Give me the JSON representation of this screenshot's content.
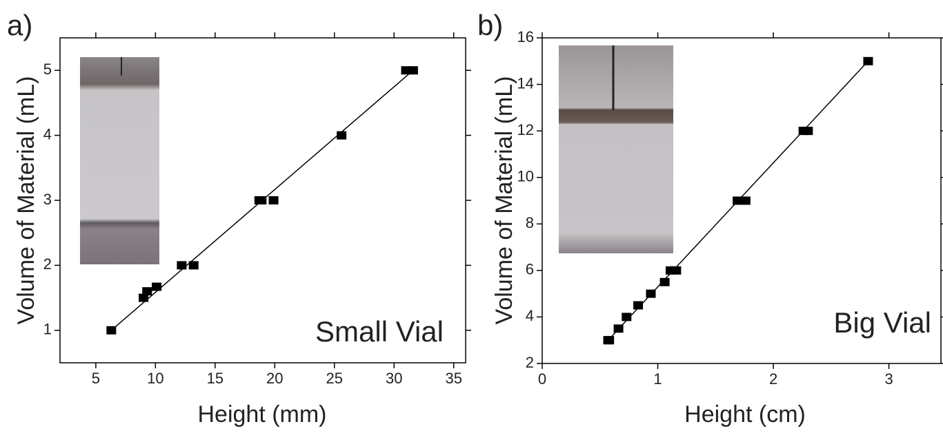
{
  "chart_data": [
    {
      "type": "scatter",
      "panel_label": "a)",
      "annotation": "Small Vial",
      "x_label": "Height (mm)",
      "y_label": "Volume of Material (mL)",
      "x": [
        6.3,
        9.0,
        9.3,
        10.1,
        12.2,
        13.2,
        18.7,
        18.9,
        19.9,
        25.6,
        31.0,
        31.6
      ],
      "values": [
        1,
        1.5,
        1.6,
        1.67,
        2,
        2,
        3,
        3,
        3,
        4,
        5,
        5
      ],
      "color": "#000000",
      "xlim": [
        2,
        36
      ],
      "xticks": [
        5,
        10,
        15,
        20,
        25,
        30,
        35
      ],
      "ylim": [
        0.5,
        5.5
      ],
      "yticks": [
        1,
        2,
        3,
        4,
        5
      ]
    },
    {
      "type": "scatter",
      "panel_label": "b)",
      "annotation": "Big Vial",
      "x_label": "Height (cm)",
      "y_label": "Volume of Material (mL)",
      "x": [
        0.57,
        0.58,
        0.66,
        0.73,
        0.83,
        0.94,
        1.06,
        1.11,
        1.16,
        1.69,
        1.76,
        2.26,
        2.3,
        2.82
      ],
      "values": [
        3,
        3,
        3.5,
        4,
        4.5,
        5,
        5.5,
        6,
        6,
        9,
        9,
        12,
        12,
        15
      ],
      "color": "#000000",
      "xlim": [
        0,
        3.45
      ],
      "xticks": [
        0,
        1,
        2,
        3
      ],
      "ylim": [
        2,
        16
      ],
      "yticks": [
        2,
        4,
        6,
        8,
        10,
        12,
        14,
        16
      ]
    }
  ]
}
